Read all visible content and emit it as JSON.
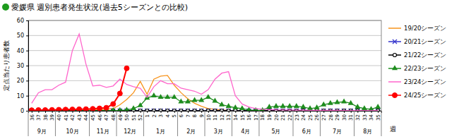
{
  "chart_data": {
    "type": "line",
    "title": "愛媛県 週別患者発生状況(過去5シーズンとの比較)",
    "y_label": "定点当たり患者数",
    "x_label": "週",
    "categories": [
      "36",
      "37",
      "38",
      "39",
      "40",
      "41",
      "42",
      "43",
      "44",
      "45",
      "46",
      "47",
      "48",
      "49",
      "50",
      "51",
      "52",
      "1",
      "2",
      "3",
      "4",
      "5",
      "6",
      "7",
      "8",
      "9",
      "10",
      "11",
      "12",
      "13",
      "14",
      "15",
      "16",
      "17",
      "18",
      "19",
      "20",
      "21",
      "22",
      "23",
      "24",
      "25",
      "26",
      "27",
      "28",
      "29",
      "30",
      "31",
      "32",
      "33",
      "34",
      "35"
    ],
    "month_labels": [
      "9月",
      null,
      null,
      null,
      "10月",
      null,
      null,
      null,
      null,
      "11月",
      null,
      null,
      null,
      "12月",
      null,
      null,
      null,
      "1月",
      null,
      null,
      null,
      null,
      "2月",
      null,
      null,
      null,
      "3月",
      null,
      null,
      null,
      "4月",
      null,
      null,
      null,
      "5月",
      null,
      null,
      null,
      null,
      "6月",
      null,
      null,
      null,
      "7月",
      null,
      null,
      null,
      null,
      "8月",
      null,
      null,
      null
    ],
    "ylim": [
      0,
      60
    ],
    "yticks": [
      0,
      10,
      20,
      30,
      40,
      50,
      60
    ],
    "grid": true,
    "legend": "right",
    "series": [
      {
        "name": "19/20シーズン",
        "color": "#f7941d",
        "marker": "none",
        "values": [
          0.1,
          0.1,
          0.1,
          0.2,
          0.2,
          0.2,
          0.3,
          0.3,
          0.4,
          0.5,
          0.7,
          1.0,
          1.5,
          4,
          7.5,
          12,
          19.5,
          11,
          21,
          23,
          23.5,
          17,
          12,
          8,
          5,
          3,
          1.5,
          1,
          0.5,
          0.3,
          0.2,
          0.1,
          0.1,
          0.1,
          0.1,
          0.1,
          0.1,
          0.1,
          0.1,
          0.1,
          0.1,
          0.1,
          0.1,
          0.1,
          0.1,
          0.1,
          0.1,
          0.1,
          0.1,
          0.1,
          0.1,
          0.1
        ]
      },
      {
        "name": "20/21シーズン",
        "color": "#3333cc",
        "marker": "x",
        "values": [
          0,
          0,
          0,
          0,
          0,
          0,
          0,
          0,
          0,
          0,
          0,
          0,
          0,
          0,
          0,
          0,
          0,
          0,
          0,
          0,
          0,
          0,
          0,
          0,
          0,
          0,
          0,
          0,
          0,
          0,
          0,
          0,
          0,
          0,
          0,
          0,
          0,
          0,
          0,
          0,
          0,
          0,
          0,
          0,
          0,
          0,
          0,
          0,
          0,
          0,
          0,
          0
        ]
      },
      {
        "name": "21/22シーズン",
        "color": "#000000",
        "marker": "circle-open",
        "values": [
          0,
          0,
          0,
          0,
          0,
          0,
          0,
          0,
          0,
          0,
          0,
          0,
          0,
          0,
          0,
          0,
          0,
          0,
          0,
          0,
          0,
          0,
          0,
          0,
          0,
          0,
          0,
          0,
          0,
          0,
          0,
          0,
          0,
          0,
          0,
          0,
          0,
          0,
          0,
          0,
          0,
          0,
          0,
          0,
          0,
          0,
          0,
          0,
          0,
          0,
          0,
          0
        ]
      },
      {
        "name": "22/23シーズン",
        "color": "#1e8c1e",
        "marker": "triangle",
        "values": [
          0,
          0,
          0,
          0,
          0,
          0,
          0,
          0,
          0,
          0.1,
          0.1,
          0.1,
          0.2,
          0.3,
          0.5,
          1.5,
          3.5,
          8.5,
          10,
          9,
          9,
          9,
          6,
          6,
          7,
          7,
          9,
          6.5,
          4,
          3,
          2,
          1.5,
          0.5,
          0.3,
          0.3,
          2.5,
          3,
          3,
          3,
          3,
          2.5,
          1.5,
          2,
          4,
          5,
          5.5,
          6,
          5,
          2.5,
          1.5,
          1,
          2.5
        ]
      },
      {
        "name": "23/24シーズン",
        "color": "#ff66cc",
        "marker": "none",
        "values": [
          5,
          12,
          14,
          14,
          17,
          19,
          40,
          51,
          31,
          16.5,
          17,
          15.5,
          16.5,
          21,
          17.5,
          16,
          15,
          9,
          16,
          20,
          18,
          18,
          15,
          14,
          13,
          11,
          14,
          21,
          25,
          26,
          10,
          4.5,
          2.5,
          1.5,
          1,
          0.8,
          0.6,
          0.5,
          0.5,
          0.4,
          0.4,
          0.3,
          0.3,
          0.3,
          0.3,
          0.3,
          0.2,
          0.2,
          0.2,
          0.2,
          0.2,
          0.2
        ]
      },
      {
        "name": "24/25シーズン",
        "color": "#ff0000",
        "marker": "circle",
        "values": [
          0.4,
          0.5,
          0.5,
          0.6,
          0.7,
          0.8,
          0.9,
          1.0,
          1.1,
          1.3,
          1.6,
          2,
          4.5,
          11.5,
          28.2,
          null,
          null,
          null,
          null,
          null,
          null,
          null,
          null,
          null,
          null,
          null,
          null,
          null,
          null,
          null,
          null,
          null,
          null,
          null,
          null,
          null,
          null,
          null,
          null,
          null,
          null,
          null,
          null,
          null,
          null,
          null,
          null,
          null,
          null,
          null,
          null,
          null
        ]
      }
    ]
  }
}
